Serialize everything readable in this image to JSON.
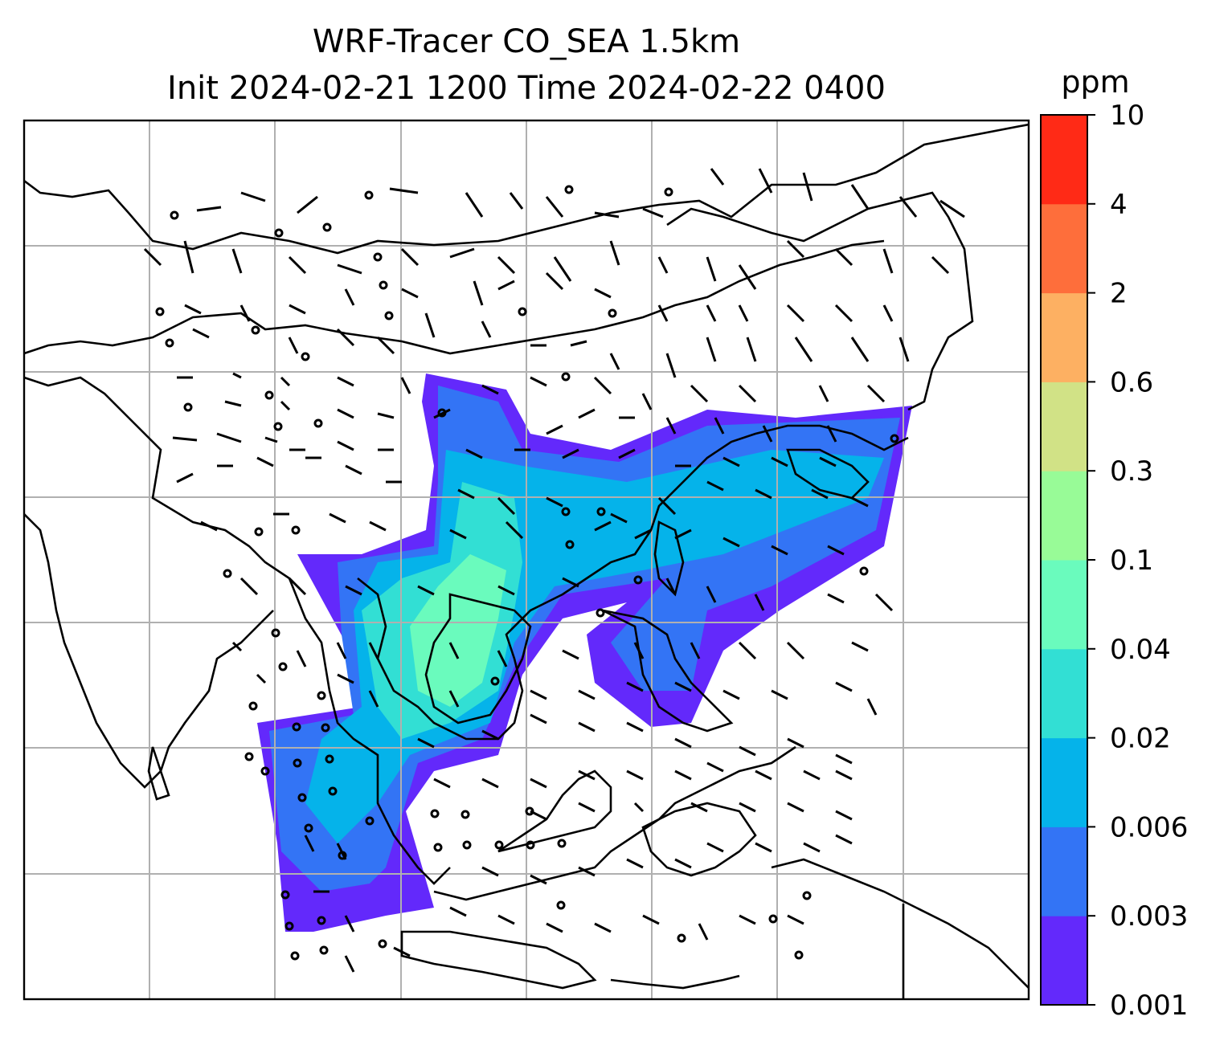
{
  "title": {
    "line1": "WRF-Tracer CO_SEA 1.5km",
    "line2": "Init 2024-02-21 1200 Time 2024-02-22 0400"
  },
  "colorbar": {
    "unit": "ppm",
    "ticks": [
      "0.001",
      "0.003",
      "0.006",
      "0.02",
      "0.04",
      "0.1",
      "0.3",
      "0.6",
      "2",
      "4",
      "10"
    ],
    "colors": [
      "#6329fb",
      "#3374f5",
      "#05b3ea",
      "#32dfd4",
      "#6afbbd",
      "#98fb97",
      "#d1e286",
      "#fdb062",
      "#fe6e3b",
      "#ff2a16"
    ]
  },
  "map": {
    "gridlines": true,
    "gridline_color": "#b0b0b0",
    "coastline_color": "#000000"
  }
}
